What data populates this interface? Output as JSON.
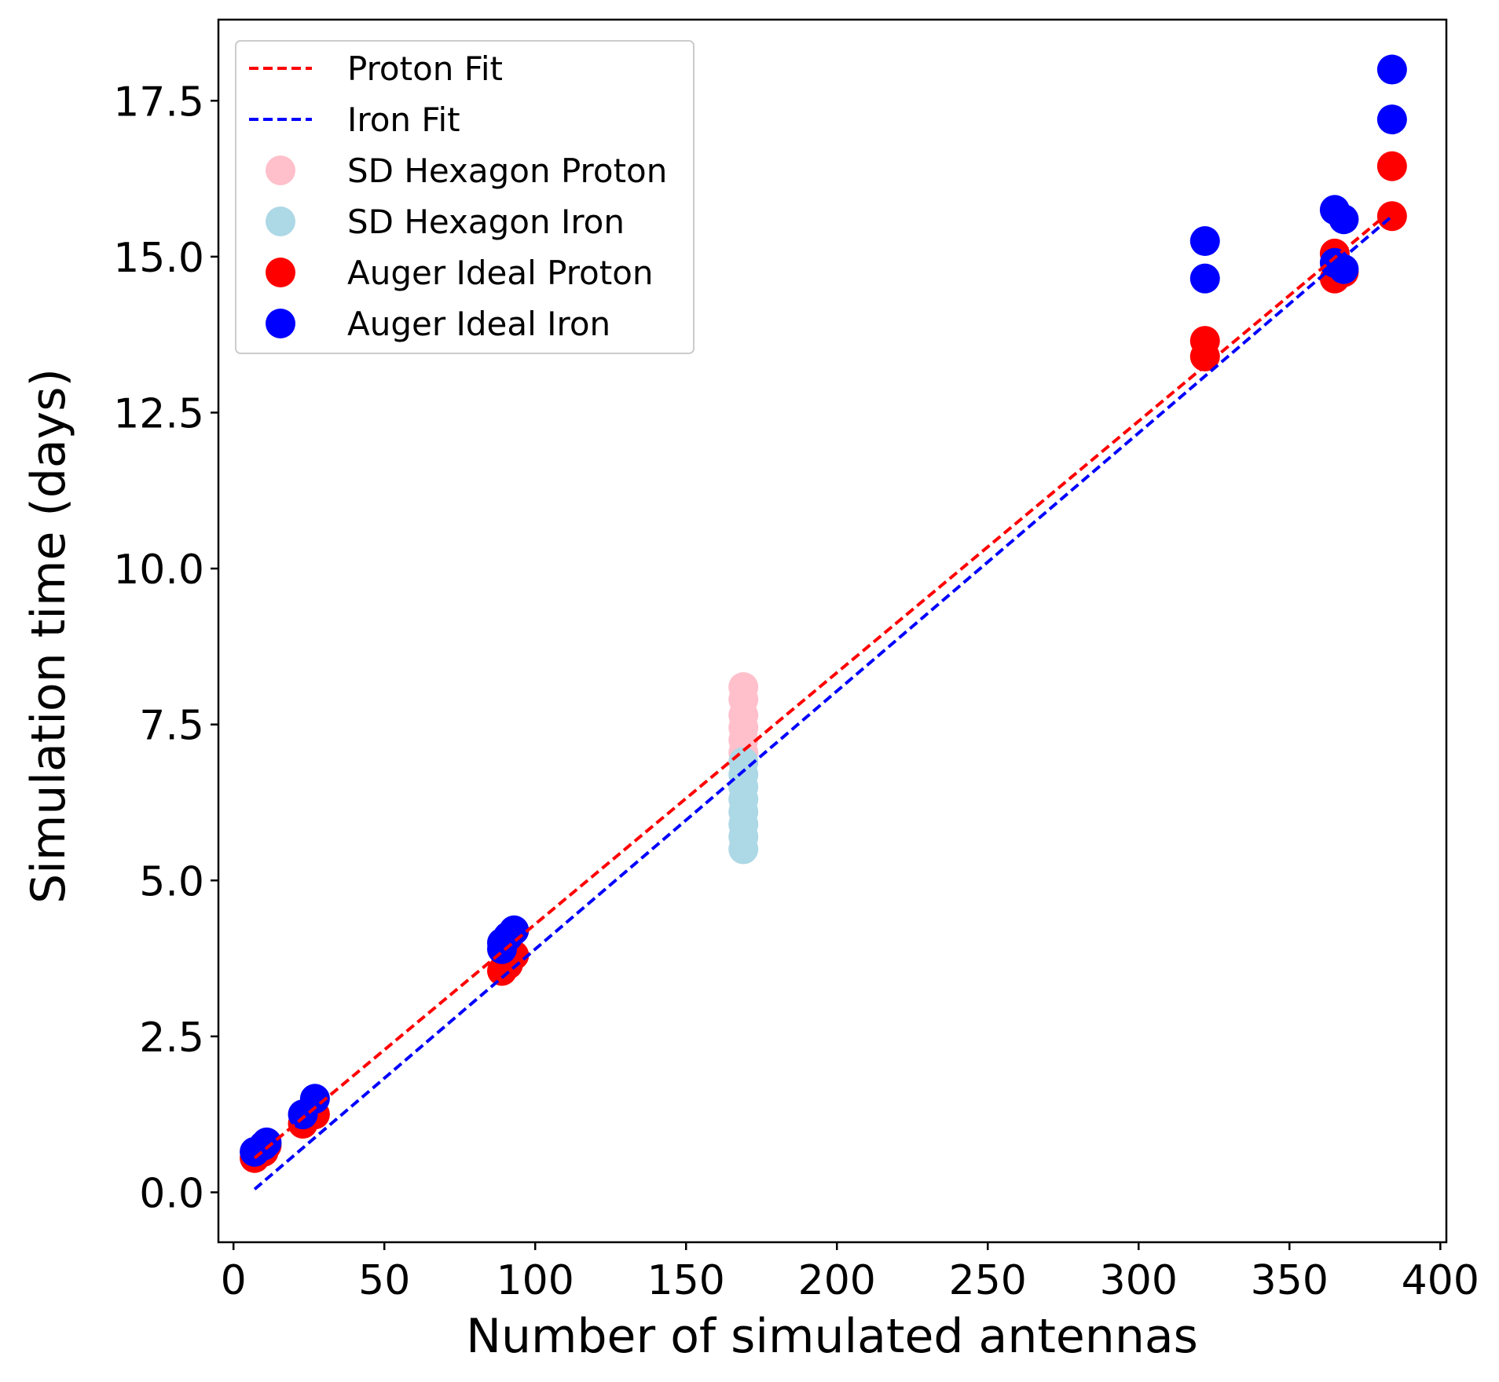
{
  "chart_data": {
    "type": "scatter",
    "title": "",
    "xlabel": "Number of simulated antennas",
    "ylabel": "Simulation time (days)",
    "xlim": [
      -5,
      402
    ],
    "ylim": [
      -0.8,
      18.8
    ],
    "xticks": [
      0,
      50,
      100,
      150,
      200,
      250,
      300,
      350,
      400
    ],
    "yticks": [
      0.0,
      2.5,
      5.0,
      7.5,
      10.0,
      12.5,
      15.0,
      17.5
    ],
    "xtick_labels": [
      "0",
      "50",
      "100",
      "150",
      "200",
      "250",
      "300",
      "350",
      "400"
    ],
    "ytick_labels": [
      "0.0",
      "2.5",
      "5.0",
      "7.5",
      "10.0",
      "12.5",
      "15.0",
      "17.5"
    ],
    "grid": false,
    "legend_position": "top-left",
    "lines": [
      {
        "name": "Proton Fit",
        "color": "#ff0000",
        "style": "dashed",
        "x": [
          7,
          384
        ],
        "y": [
          0.55,
          15.75
        ]
      },
      {
        "name": "Iron Fit",
        "color": "#0000ff",
        "style": "dashed",
        "x": [
          7,
          384
        ],
        "y": [
          0.05,
          15.65
        ]
      }
    ],
    "series": [
      {
        "name": "SD Hexagon Proton",
        "color": "#ffc0cb",
        "points": [
          [
            169,
            8.1
          ],
          [
            169,
            7.9
          ],
          [
            169,
            7.65
          ],
          [
            169,
            7.45
          ],
          [
            169,
            7.25
          ],
          [
            169,
            7.05
          ],
          [
            169,
            6.9
          ]
        ]
      },
      {
        "name": "SD Hexagon Iron",
        "color": "#add8e6",
        "points": [
          [
            169,
            6.9
          ],
          [
            169,
            6.7
          ],
          [
            169,
            6.5
          ],
          [
            169,
            6.3
          ],
          [
            169,
            6.1
          ],
          [
            169,
            5.9
          ],
          [
            169,
            5.7
          ],
          [
            169,
            5.5
          ]
        ]
      },
      {
        "name": "Auger Ideal Proton",
        "color": "#ff0000",
        "points": [
          [
            7,
            0.55
          ],
          [
            10,
            0.65
          ],
          [
            11,
            0.75
          ],
          [
            23,
            1.1
          ],
          [
            27,
            1.25
          ],
          [
            89,
            3.55
          ],
          [
            91,
            3.65
          ],
          [
            93,
            3.8
          ],
          [
            322,
            13.4
          ],
          [
            322,
            13.65
          ],
          [
            365,
            14.65
          ],
          [
            365,
            15.05
          ],
          [
            368,
            14.75
          ],
          [
            384,
            15.65
          ],
          [
            384,
            16.45
          ]
        ]
      },
      {
        "name": "Auger Ideal Iron",
        "color": "#0000ff",
        "points": [
          [
            7,
            0.65
          ],
          [
            10,
            0.75
          ],
          [
            11,
            0.8
          ],
          [
            23,
            1.25
          ],
          [
            27,
            1.5
          ],
          [
            89,
            3.9
          ],
          [
            89,
            4.0
          ],
          [
            91,
            4.1
          ],
          [
            93,
            4.2
          ],
          [
            322,
            14.65
          ],
          [
            322,
            15.25
          ],
          [
            365,
            14.9
          ],
          [
            365,
            15.75
          ],
          [
            368,
            14.8
          ],
          [
            368,
            15.6
          ],
          [
            384,
            17.2
          ],
          [
            384,
            18.0
          ]
        ]
      }
    ],
    "legend": [
      "Proton Fit",
      "Iron Fit",
      "SD Hexagon Proton",
      "SD Hexagon Iron",
      "Auger Ideal Proton",
      "Auger Ideal Iron"
    ]
  }
}
